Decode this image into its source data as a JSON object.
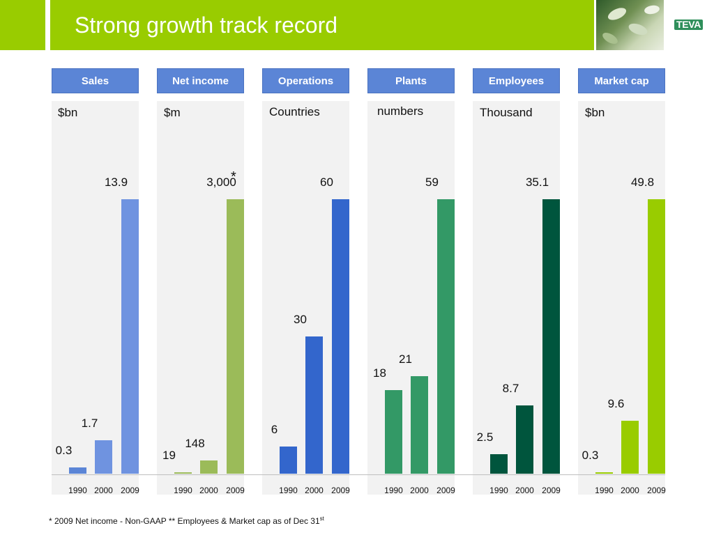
{
  "header": {
    "title": "Strong growth track record",
    "logo_text": "TEVA"
  },
  "footnote": {
    "text": "* 2009 Net income - Non-GAAP  ** Employees & Market cap as of Dec 31",
    "sup": "st"
  },
  "asterisk": "*",
  "colors": {
    "title_bar": "#99cc00",
    "header_box": "#5b85d6",
    "panel_bg": "#f2f2f2"
  },
  "chart_data": [
    {
      "type": "bar",
      "header": "Sales",
      "unit": "$bn",
      "categories": [
        "1990",
        "2000",
        "2009"
      ],
      "values": [
        0.3,
        1.7,
        13.9
      ],
      "labels": [
        "0.3",
        "1.7",
        "13.9"
      ],
      "colors": [
        "#5b85d6",
        "#6f93e0",
        "#6f93e0"
      ]
    },
    {
      "type": "bar",
      "header": "Net income",
      "unit": "$m",
      "categories": [
        "1990",
        "2000",
        "2009"
      ],
      "values": [
        19,
        148,
        3000
      ],
      "labels": [
        "19",
        "148",
        "3,000"
      ],
      "colors": [
        "#9bbb59",
        "#9bbb59",
        "#9bbb59"
      ]
    },
    {
      "type": "bar",
      "header": "Operations",
      "unit": "Countries",
      "categories": [
        "1990",
        "2000",
        "2009"
      ],
      "values": [
        6,
        30,
        60
      ],
      "labels": [
        "6",
        "30",
        "60"
      ],
      "colors": [
        "#3366cc",
        "#3366cc",
        "#3366cc"
      ]
    },
    {
      "type": "bar",
      "header": "Plants",
      "unit": "numbers",
      "categories": [
        "1990",
        "2000",
        "2009"
      ],
      "values": [
        18,
        21,
        59
      ],
      "labels": [
        "18",
        "21",
        "59"
      ],
      "colors": [
        "#339966",
        "#339966",
        "#339966"
      ]
    },
    {
      "type": "bar",
      "header": "Employees",
      "unit": "Thousand",
      "categories": [
        "1990",
        "2000",
        "2009"
      ],
      "values": [
        2.5,
        8.7,
        35.1
      ],
      "labels": [
        "2.5",
        "8.7",
        "35.1"
      ],
      "colors": [
        "#00553d",
        "#00553d",
        "#00553d"
      ]
    },
    {
      "type": "bar",
      "header": "Market cap",
      "unit": "$bn",
      "categories": [
        "1990",
        "2000",
        "2009"
      ],
      "values": [
        0.3,
        9.6,
        49.8
      ],
      "labels": [
        "0.3",
        "9.6",
        "49.8"
      ],
      "colors": [
        "#99cc00",
        "#99cc00",
        "#99cc00"
      ]
    }
  ]
}
